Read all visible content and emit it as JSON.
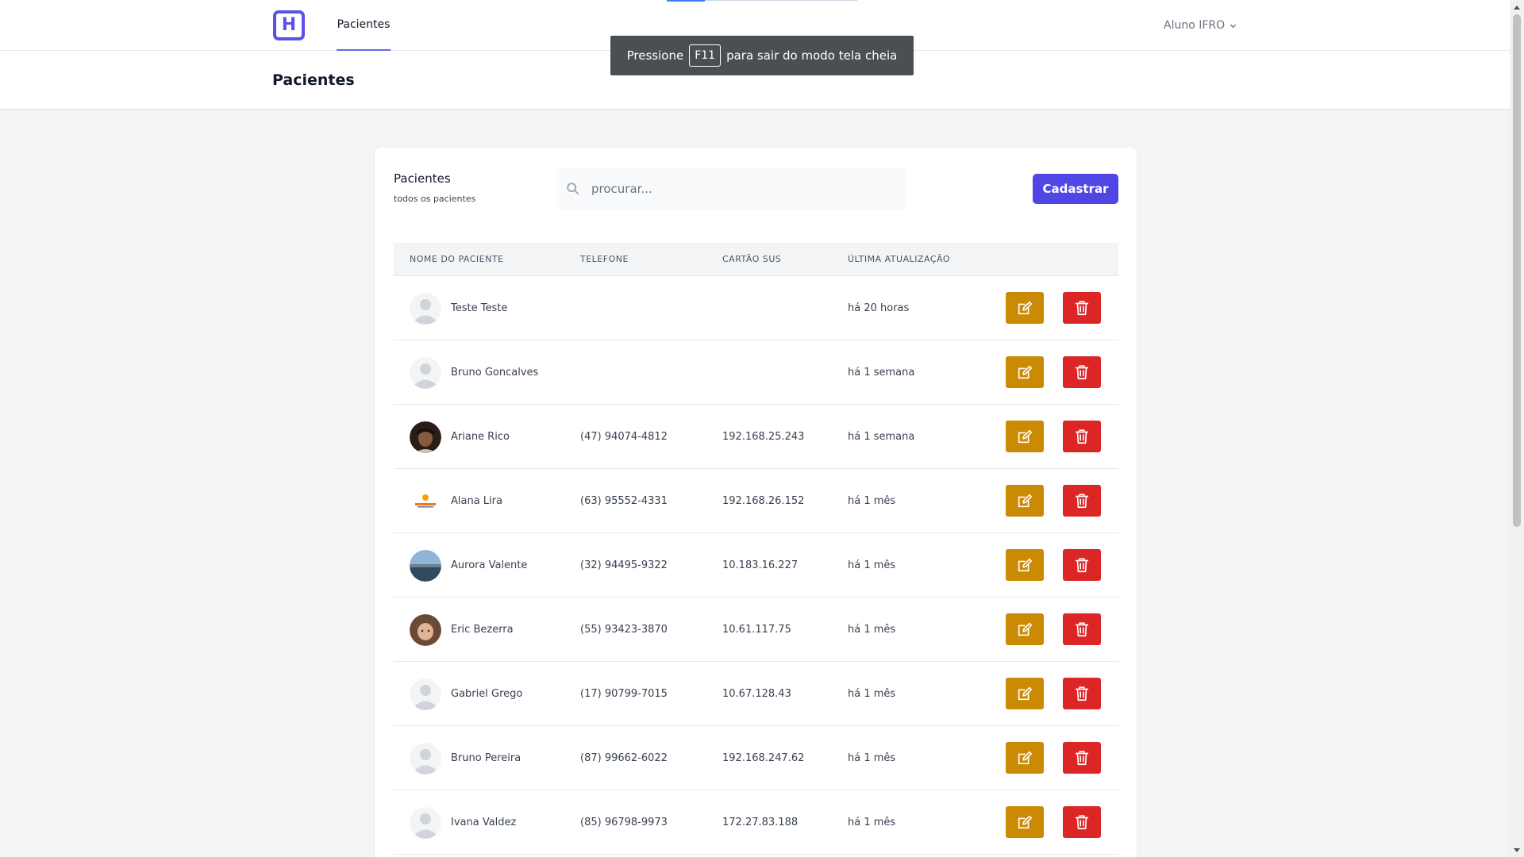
{
  "nav": {
    "logo_letter": "H",
    "tab_label": "Pacientes",
    "user_label": "Aluno IFRO",
    "progress": 0.2
  },
  "header": {
    "title": "Pacientes"
  },
  "fullscreen_toast": {
    "before": "Pressione",
    "key": "F11",
    "after": "para sair do modo tela cheia"
  },
  "card": {
    "title": "Pacientes",
    "subtitle": "todos os pacientes",
    "search_placeholder": "procurar...",
    "create_label": "Cadastrar"
  },
  "table": {
    "headers": {
      "name": "NOME DO PACIENTE",
      "phone": "TELEFONE",
      "sus": "CARTÃO SUS",
      "updated": "ÚLTIMA ATUALIZAÇÃO"
    },
    "rows": [
      {
        "name": "Teste Teste",
        "phone": "",
        "sus": "",
        "updated": "há 20 horas",
        "avatar": "default"
      },
      {
        "name": "Bruno Goncalves",
        "phone": "",
        "sus": "",
        "updated": "há 1 semana",
        "avatar": "default"
      },
      {
        "name": "Ariane Rico",
        "phone": "(47) 94074-4812",
        "sus": "192.168.25.243",
        "updated": "há 1 semana",
        "avatar": "photo-woman"
      },
      {
        "name": "Alana Lira",
        "phone": "(63) 95552-4331",
        "sus": "192.168.26.152",
        "updated": "há 1 mês",
        "avatar": "logo-orange"
      },
      {
        "name": "Aurora Valente",
        "phone": "(32) 94495-9322",
        "sus": "10.183.16.227",
        "updated": "há 1 mês",
        "avatar": "photo-landscape"
      },
      {
        "name": "Eric Bezerra",
        "phone": "(55) 93423-3870",
        "sus": "10.61.117.75",
        "updated": "há 1 mês",
        "avatar": "photo-child"
      },
      {
        "name": "Gabriel Grego",
        "phone": "(17) 90799-7015",
        "sus": "10.67.128.43",
        "updated": "há 1 mês",
        "avatar": "default"
      },
      {
        "name": "Bruno Pereira",
        "phone": "(87) 99662-6022",
        "sus": "192.168.247.62",
        "updated": "há 1 mês",
        "avatar": "default"
      },
      {
        "name": "Ivana Valdez",
        "phone": "(85) 96798-9973",
        "sus": "172.27.83.188",
        "updated": "há 1 mês",
        "avatar": "default"
      }
    ]
  },
  "icons": {
    "search": "search-icon",
    "edit": "pencil-square-icon",
    "delete": "trash-icon",
    "user_menu": "chevron-down-icon"
  },
  "colors": {
    "accent": "#4f46e5",
    "edit": "#ca8a04",
    "delete": "#dc2626"
  }
}
